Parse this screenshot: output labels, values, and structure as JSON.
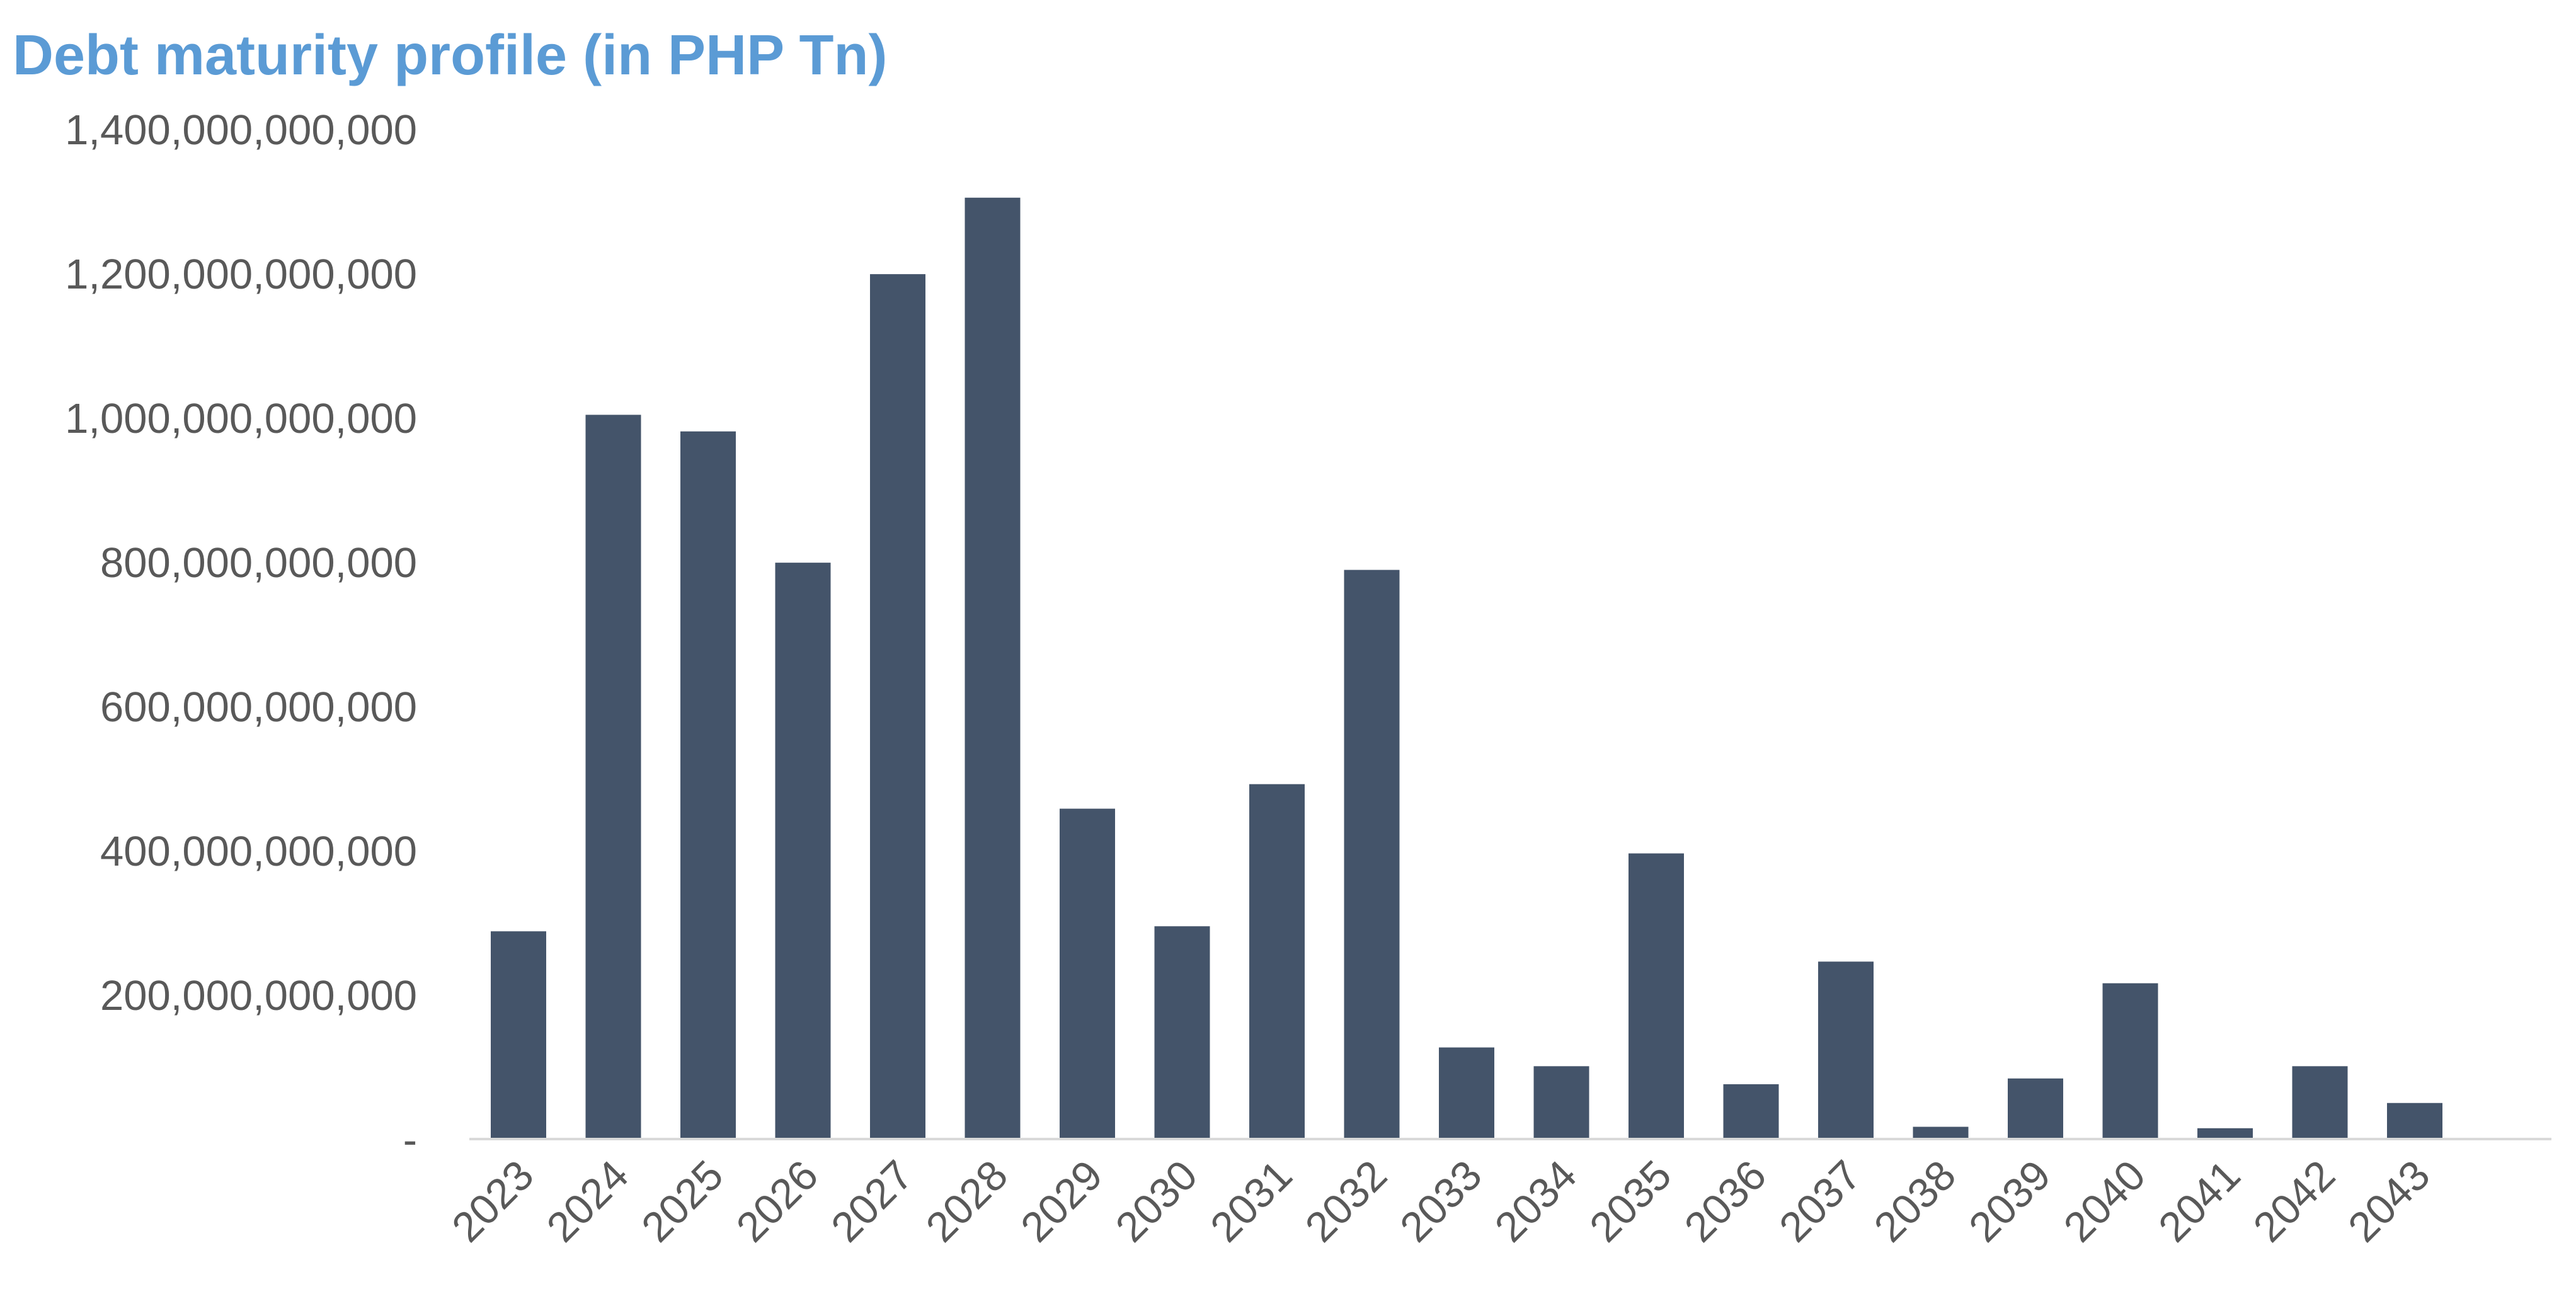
{
  "chart_data": {
    "type": "bar",
    "title": "Debt maturity profile (in PHP Tn)",
    "xlabel": "",
    "ylabel": "",
    "categories": [
      "2023",
      "2024",
      "2025",
      "2026",
      "2027",
      "2028",
      "2029",
      "2030",
      "2031",
      "2032",
      "2033",
      "2034",
      "2035",
      "2036",
      "2037",
      "2038",
      "2039",
      "2040",
      "2041",
      "2042",
      "2043"
    ],
    "values": [
      288000000000,
      1004000000000,
      981000000000,
      799000000000,
      1199000000000,
      1305000000000,
      458000000000,
      295000000000,
      492000000000,
      789000000000,
      127000000000,
      101000000000,
      396000000000,
      76000000000,
      246000000000,
      17000000000,
      84000000000,
      216000000000,
      15000000000,
      101000000000,
      50000000000
    ],
    "ylim": [
      0,
      1400000000000
    ],
    "yticks": [
      0,
      200000000000,
      400000000000,
      600000000000,
      800000000000,
      1000000000000,
      1200000000000,
      1400000000000
    ],
    "ytick_labels": [
      "-",
      "200,000,000,000",
      "400,000,000,000",
      "600,000,000,000",
      "800,000,000,000",
      "1,000,000,000,000",
      "1,200,000,000,000",
      "1,400,000,000,000"
    ],
    "grid": false,
    "legend": "none",
    "colors": {
      "bar": "#44546a",
      "title": "#5b9bd5",
      "ticks": "#595959",
      "axis": "#d9d9d9"
    }
  }
}
